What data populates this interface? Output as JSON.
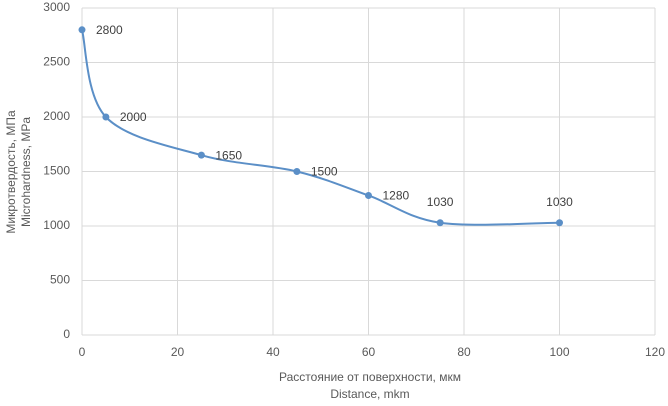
{
  "chart_data": {
    "type": "line",
    "x_label": [
      "Расстояние от поверхности, мкм",
      "Distance, mkm"
    ],
    "y_label": [
      "Микротвердость, МПа",
      "Microhardness, MPa"
    ],
    "x": [
      0,
      5,
      25,
      45,
      60,
      75,
      100
    ],
    "series": [
      {
        "color": "#5b8fc7",
        "values": [
          2800,
          2000,
          1650,
          1500,
          1280,
          1030,
          1030
        ]
      }
    ],
    "xlim": [
      0,
      120
    ],
    "xticks": [
      0,
      20,
      40,
      60,
      80,
      100,
      120
    ],
    "ylim": [
      0,
      3000
    ],
    "yticks": [
      0,
      500,
      1000,
      1500,
      2000,
      2500,
      3000
    ],
    "grid": true,
    "smooth": true,
    "markers": true,
    "data_labels": true
  }
}
